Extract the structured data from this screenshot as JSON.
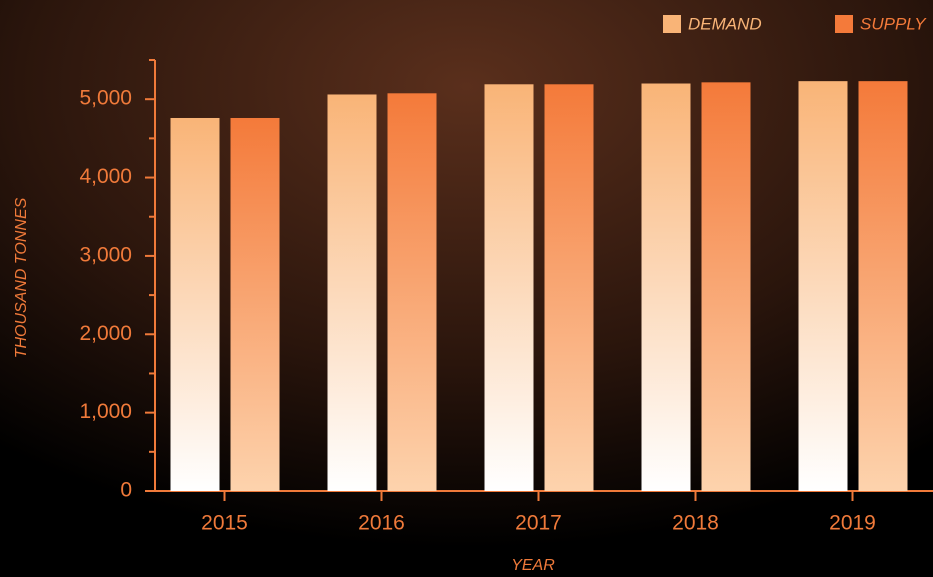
{
  "chart_data": {
    "type": "bar",
    "x_label": "YEAR",
    "y_label": "THOUSAND TONNES",
    "categories": [
      "2015",
      "2016",
      "2017",
      "2018",
      "2019"
    ],
    "series": [
      {
        "name": "DEMAND",
        "color": "#f9b477",
        "values": [
          4760,
          5060,
          5190,
          5200,
          5230
        ]
      },
      {
        "name": "SUPPLY",
        "color": "#f47a3a",
        "values": [
          4760,
          5075,
          5190,
          5215,
          5230
        ]
      }
    ],
    "ylim": [
      0,
      5500
    ],
    "yticks": [
      0,
      {
        "value": 1000,
        "label": "1,000"
      },
      {
        "value": 2000,
        "label": "2,000"
      },
      {
        "value": 3000,
        "label": "3,000"
      },
      {
        "value": 4000,
        "label": "4,000"
      },
      {
        "value": 5000,
        "label": "5,000"
      }
    ],
    "yminorticks": [
      500,
      1500,
      2500,
      3500,
      4500,
      5500
    ],
    "axis_color": "#f07a3a",
    "legend": "top-right"
  }
}
